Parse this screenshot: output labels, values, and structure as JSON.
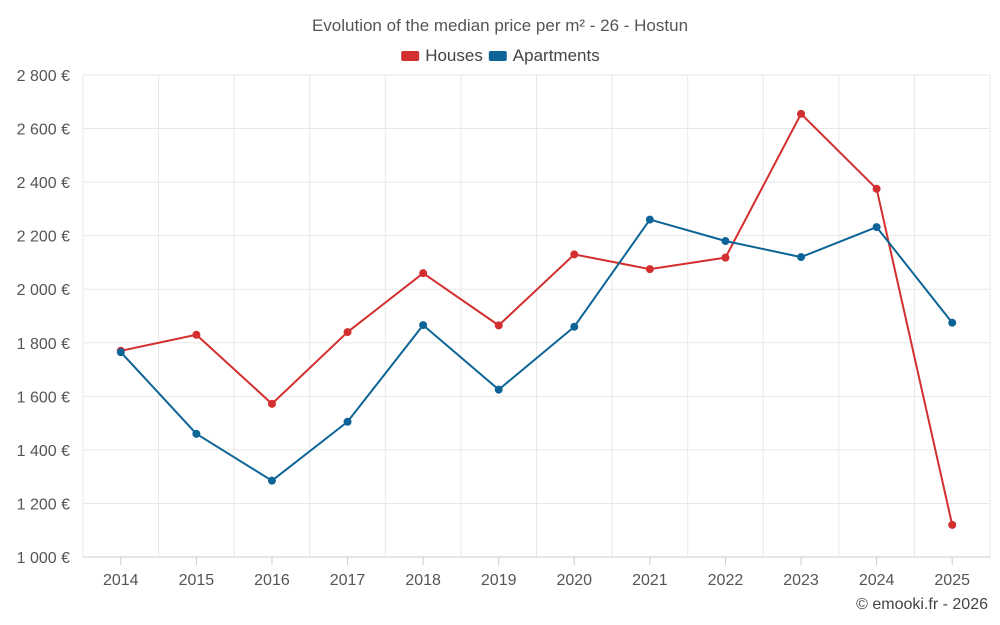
{
  "chart_data": {
    "type": "line",
    "title": "Evolution of the median price per m² - 26 - Hostun",
    "categories": [
      "2014",
      "2015",
      "2016",
      "2017",
      "2018",
      "2019",
      "2020",
      "2021",
      "2022",
      "2023",
      "2024",
      "2025"
    ],
    "series": [
      {
        "name": "Houses",
        "color": "#d32f2f",
        "values": [
          1770,
          1830,
          1572,
          1840,
          2060,
          1865,
          2130,
          2075,
          2118,
          2655,
          2375,
          1120
        ]
      },
      {
        "name": "Apartments",
        "color": "#0d6496",
        "values": [
          1765,
          1460,
          1285,
          1505,
          1866,
          1625,
          1860,
          2260,
          2180,
          2120,
          2232,
          1875
        ]
      }
    ],
    "ylim": [
      1000,
      2800
    ],
    "yticks": [
      1000,
      1200,
      1400,
      1600,
      1800,
      2000,
      2200,
      2400,
      2600,
      2800
    ],
    "ytick_labels": [
      "1 000 €",
      "1 200 €",
      "1 400 €",
      "1 600 €",
      "1 800 €",
      "2 000 €",
      "2 200 €",
      "2 400 €",
      "2 600 €",
      "2 800 €"
    ],
    "legend_position": "top-center",
    "grid": true
  },
  "credit": "© emooki.fr - 2026"
}
